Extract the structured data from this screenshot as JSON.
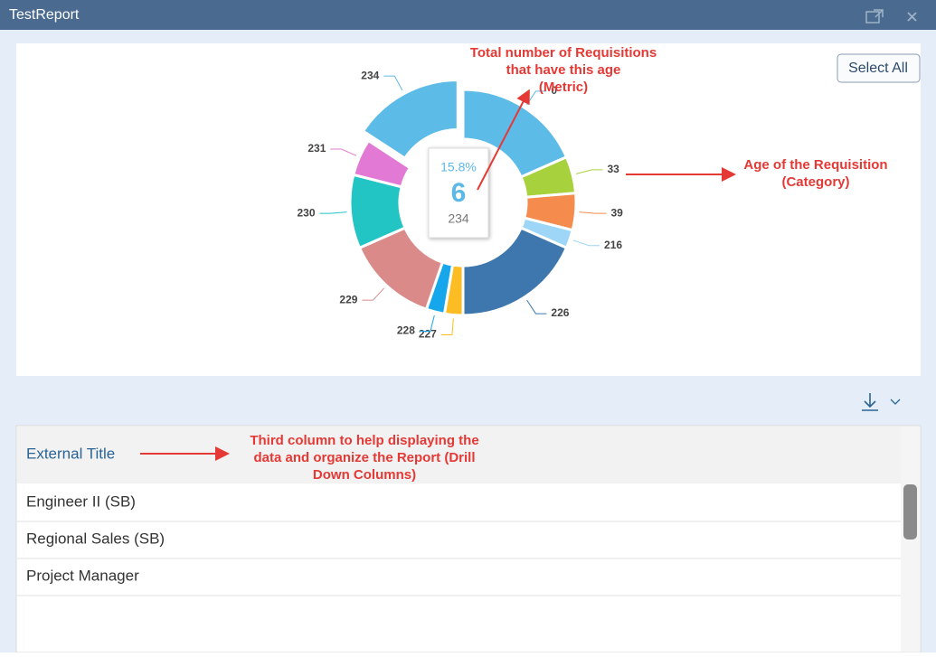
{
  "header": {
    "title": "TestReport"
  },
  "select_all": "Select All",
  "chart_data": {
    "type": "pie",
    "donut": true,
    "categories": [
      "0",
      "33",
      "39",
      "216",
      "226",
      "227",
      "228",
      "229",
      "230",
      "231",
      "234"
    ],
    "values": [
      7,
      2,
      2,
      1,
      7,
      1,
      1,
      5,
      4,
      2,
      6
    ],
    "colors": [
      "#5dbbe8",
      "#a8d13e",
      "#f58b4c",
      "#9dd6f7",
      "#3e77ad",
      "#fbbd23",
      "#16a6ec",
      "#d98a89",
      "#22c4c4",
      "#e279d4",
      "#5dbbe8"
    ],
    "selected": "234",
    "tooltip": {
      "percent": "15.8%",
      "value": 6,
      "category": "234"
    }
  },
  "annotations": [
    {
      "lines": [
        "Total number of Requisitions",
        "that have this age",
        "(Metric)"
      ]
    },
    {
      "lines": [
        "Age of the Requisition",
        "(Category)"
      ]
    },
    {
      "lines": [
        "Third column to help displaying the",
        "data and organize the Report (Drill",
        "Down Columns)"
      ]
    }
  ],
  "table": {
    "header": "External Title",
    "rows": [
      "Engineer II (SB)",
      "Regional Sales (SB)",
      "Project Manager"
    ]
  }
}
